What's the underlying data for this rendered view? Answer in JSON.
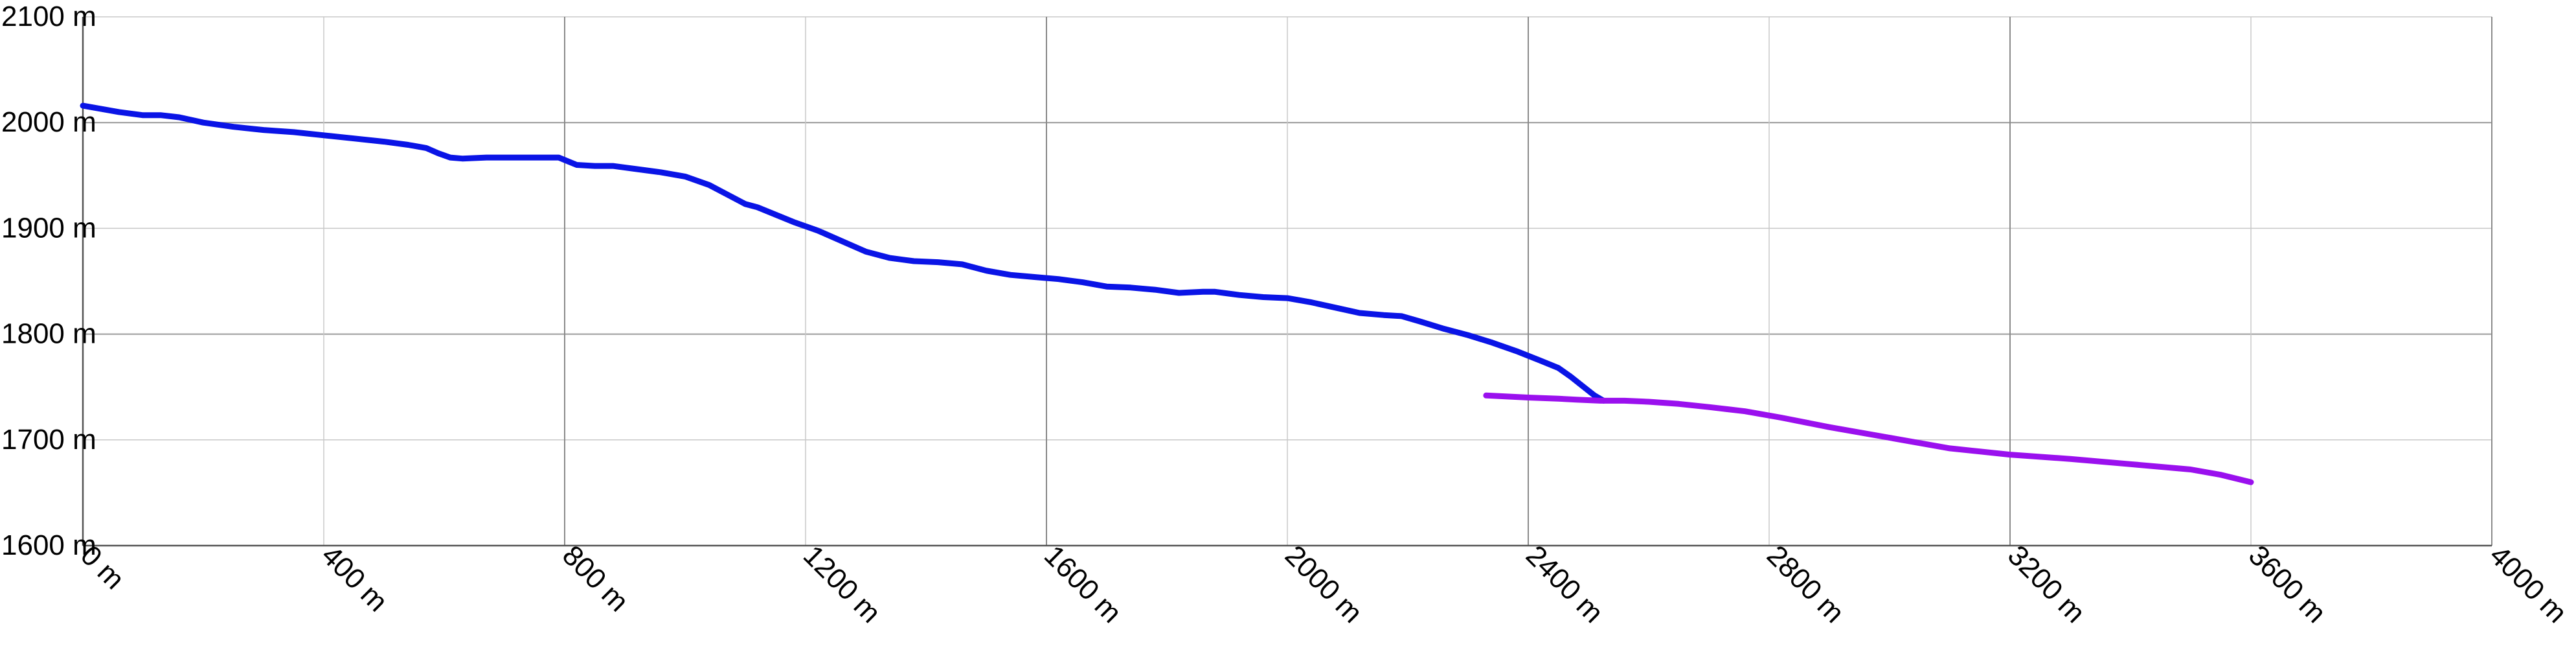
{
  "chart_data": {
    "type": "line",
    "title": "",
    "xlabel": "",
    "ylabel": "",
    "xlim": [
      0,
      4000
    ],
    "ylim": [
      1600,
      2100
    ],
    "grid": true,
    "x_ticks": [
      0,
      400,
      800,
      1200,
      1600,
      2000,
      2400,
      2800,
      3200,
      3600,
      4000
    ],
    "x_tick_labels": [
      "0 m",
      "400 m",
      "800 m",
      "1200 m",
      "1600 m",
      "2000 m",
      "2400 m",
      "2800 m",
      "3200 m",
      "3600 m",
      "4000 m"
    ],
    "y_ticks": [
      1600,
      1700,
      1800,
      1900,
      2000,
      2100
    ],
    "y_tick_labels": [
      "1600 m",
      "1700 m",
      "1800 m",
      "1900 m",
      "2000 m",
      "2100 m"
    ],
    "series": [
      {
        "color": "#0a14e6",
        "x": [
          0,
          60,
          100,
          130,
          160,
          200,
          250,
          300,
          350,
          400,
          450,
          500,
          540,
          570,
          590,
          610,
          630,
          670,
          720,
          760,
          790,
          820,
          850,
          880,
          920,
          960,
          1000,
          1040,
          1070,
          1100,
          1120,
          1150,
          1180,
          1220,
          1260,
          1300,
          1340,
          1380,
          1420,
          1460,
          1500,
          1540,
          1580,
          1620,
          1660,
          1700,
          1740,
          1780,
          1820,
          1860,
          1880,
          1920,
          1960,
          2000,
          2040,
          2080,
          2120,
          2160,
          2190,
          2220,
          2260,
          2300,
          2340,
          2380,
          2420,
          2450,
          2470,
          2490,
          2510,
          2525
        ],
        "values": [
          2016,
          2010,
          2007,
          2007,
          2005,
          2000,
          1996,
          1993,
          1991,
          1988,
          1985,
          1982,
          1979,
          1976,
          1971,
          1967,
          1966,
          1967,
          1967,
          1967,
          1967,
          1960,
          1959,
          1959,
          1956,
          1953,
          1949,
          1941,
          1932,
          1923,
          1920,
          1913,
          1906,
          1898,
          1888,
          1878,
          1872,
          1869,
          1868,
          1866,
          1860,
          1856,
          1854,
          1852,
          1849,
          1845,
          1844,
          1842,
          1839,
          1840,
          1840,
          1837,
          1835,
          1834,
          1830,
          1825,
          1820,
          1818,
          1817,
          1812,
          1805,
          1799,
          1792,
          1784,
          1775,
          1768,
          1760,
          1751,
          1742,
          1737
        ]
      },
      {
        "color": "#9a10ee",
        "x": [
          2330,
          2400,
          2450,
          2480,
          2520,
          2560,
          2600,
          2650,
          2700,
          2760,
          2820,
          2900,
          3000,
          3100,
          3200,
          3300,
          3400,
          3500,
          3550,
          3600
        ],
        "values": [
          1742,
          1740,
          1739,
          1738,
          1737,
          1737,
          1736,
          1734,
          1731,
          1727,
          1721,
          1712,
          1702,
          1692,
          1686,
          1682,
          1677,
          1672,
          1667,
          1660
        ]
      }
    ]
  }
}
